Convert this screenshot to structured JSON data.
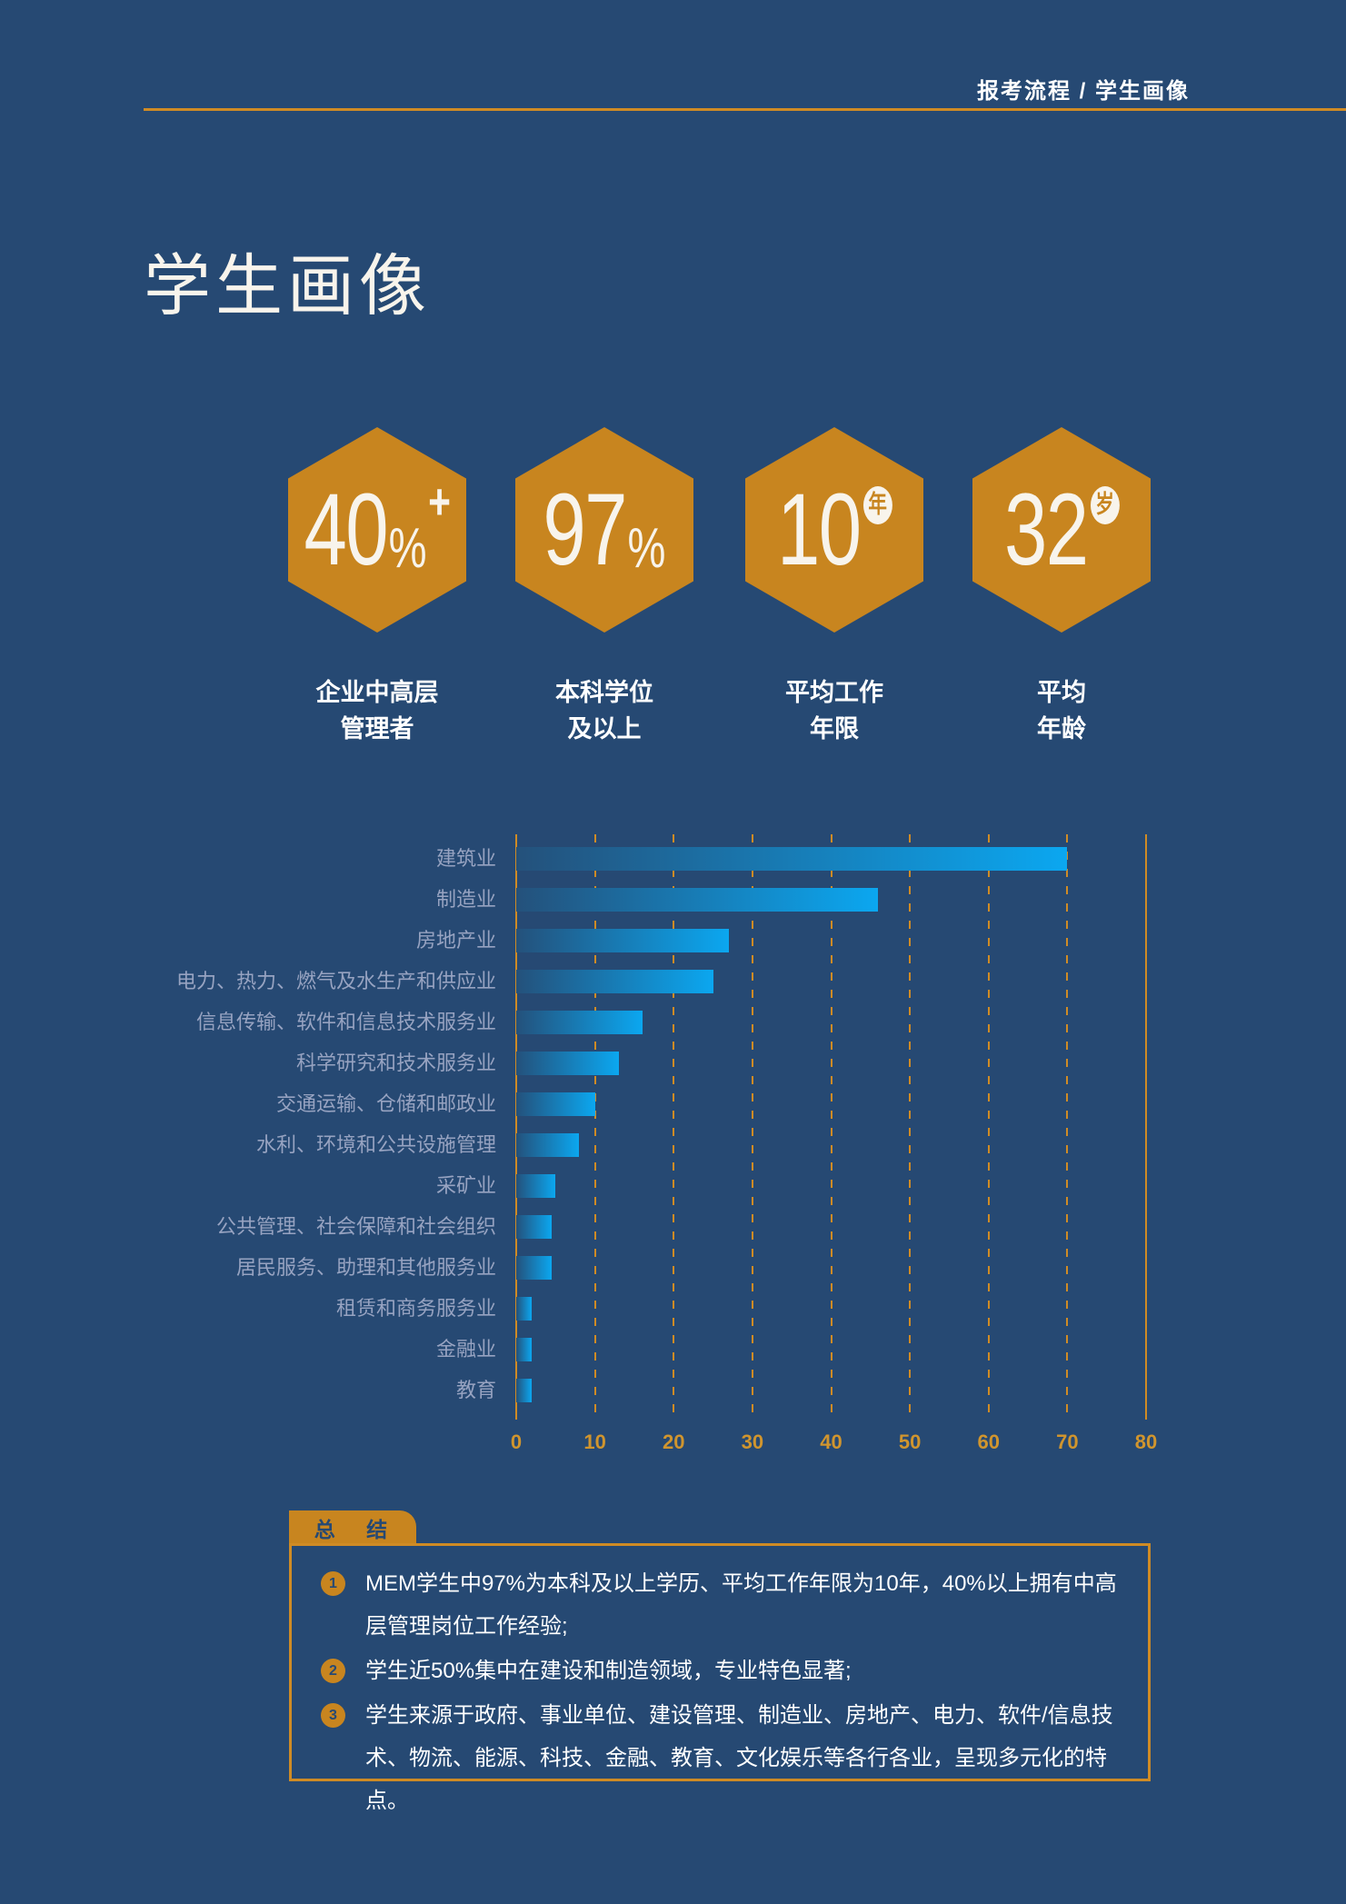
{
  "header": {
    "breadcrumb": "报考流程 / 学生画像",
    "title": "学生画像"
  },
  "stats": [
    {
      "value": "40",
      "unit": "%",
      "badge": "+",
      "badge_style": "plus",
      "label": [
        "企业中高层",
        "管理者"
      ]
    },
    {
      "value": "97",
      "unit": "%",
      "badge": "",
      "badge_style": "none",
      "label": [
        "本科学位",
        "及以上"
      ]
    },
    {
      "value": "10",
      "unit": "",
      "badge": "年",
      "badge_style": "circle",
      "label": [
        "平均工作",
        "年限"
      ]
    },
    {
      "value": "32",
      "unit": "",
      "badge": "岁",
      "badge_style": "circle",
      "label": [
        "平均",
        "年龄"
      ]
    }
  ],
  "chart_data": {
    "type": "bar",
    "orientation": "horizontal",
    "title": "",
    "xlabel": "",
    "ylabel": "",
    "categories": [
      "建筑业",
      "制造业",
      "房地产业",
      "电力、热力、燃气及水生产和供应业",
      "信息传输、软件和信息技术服务业",
      "科学研究和技术服务业",
      "交通运输、仓储和邮政业",
      "水利、环境和公共设施管理",
      "采矿业",
      "公共管理、社会保障和社会组织",
      "居民服务、助理和其他服务业",
      "租赁和商务服务业",
      "金融业",
      "教育"
    ],
    "values": [
      70,
      46,
      27,
      25,
      16,
      13,
      10,
      8,
      5,
      4.5,
      4.5,
      2,
      2,
      2
    ],
    "xlim": [
      0,
      80
    ],
    "xticks": [
      0,
      10,
      20,
      30,
      40,
      50,
      60,
      70,
      80
    ],
    "grid": "vertical, dashed orange, solid at 0 and 80",
    "legend": "none",
    "bar_gradient": [
      "#24517b",
      "#0ba7f0"
    ]
  },
  "summary": {
    "tab_label": "总 结",
    "items": [
      {
        "num": "1",
        "text": "MEM学生中97%为本科及以上学历、平均工作年限为10年，40%以上拥有中高层管理岗位工作经验;"
      },
      {
        "num": "2",
        "text": "学生近50%集中在建设和制造领域，专业特色显著;"
      },
      {
        "num": "3",
        "text": "学生来源于政府、事业单位、建设管理、制造业、房地产、电力、软件/信息技术、物流、能源、科技、金融、教育、文化娱乐等各行各业，呈现多元化的特点。"
      }
    ]
  },
  "colors": {
    "background": "#264973",
    "accent_orange": "#c8851f",
    "line_orange": "#cf8b25",
    "tick_orange": "#d0952e",
    "bar_start": "#24517b",
    "bar_end": "#0ba7f0",
    "category_label": "#97a3c1",
    "text_white": "#ffffff",
    "off_white": "#f8f4ec"
  }
}
